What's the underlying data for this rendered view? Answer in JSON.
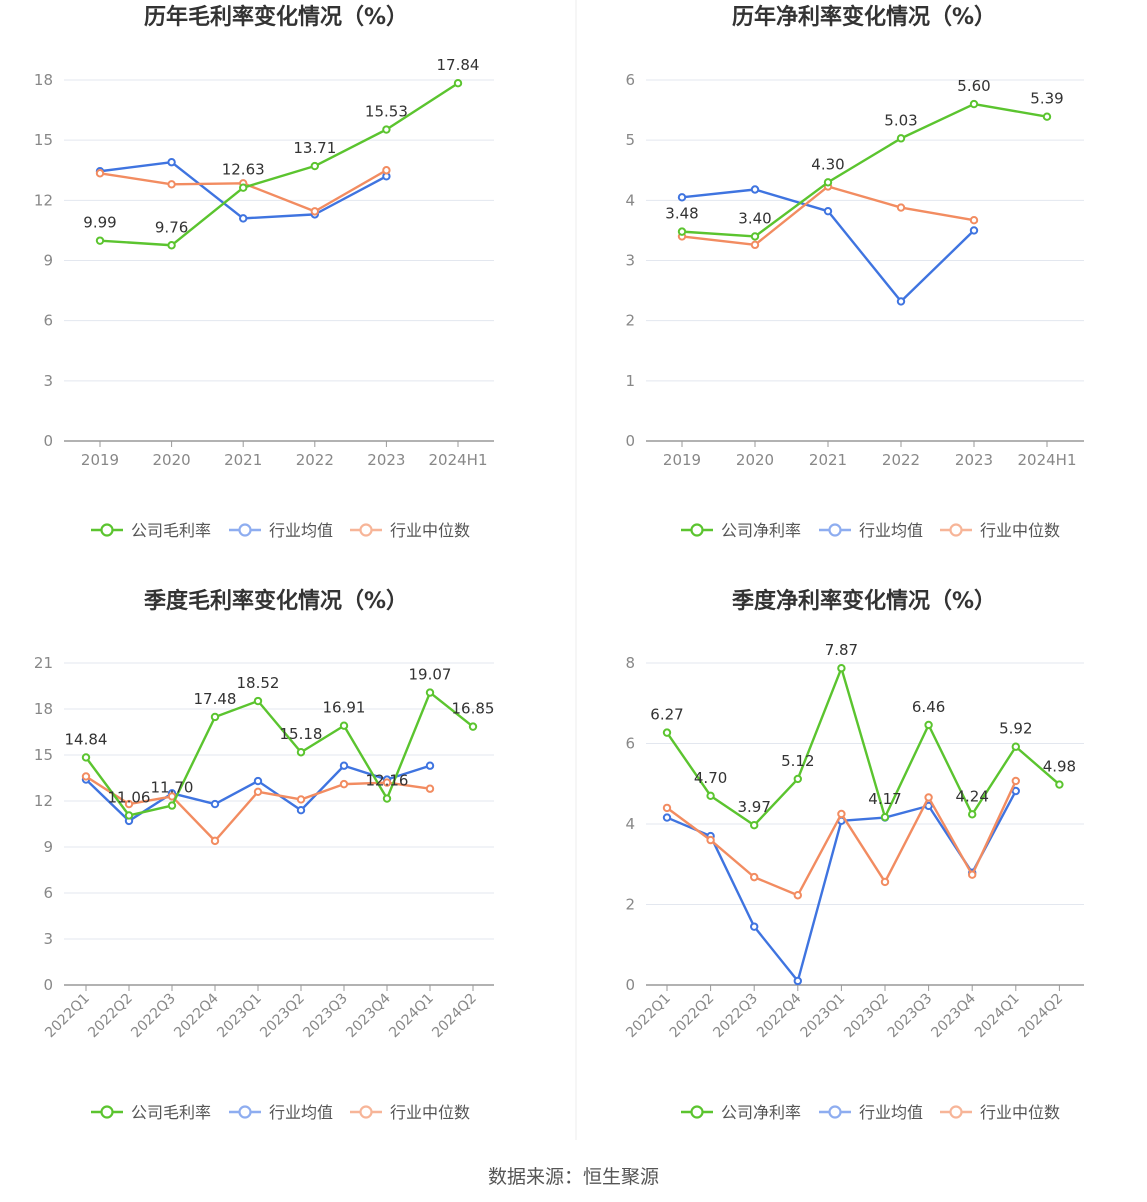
{
  "source_text": "数据来源：恒生聚源",
  "colors": {
    "company": "#5bc42f",
    "average": "#3f74e0",
    "median": "#f28c61",
    "grid": "#e3e7ef",
    "axis": "#999999",
    "tick": "#888888",
    "title": "#333333",
    "label": "#333333"
  },
  "chart_data": [
    {
      "type": "line",
      "title": "历年毛利率变化情况（%）",
      "categories": [
        "2019",
        "2020",
        "2021",
        "2022",
        "2023",
        "2024H1"
      ],
      "ylim": [
        0,
        18
      ],
      "yticks": [
        0,
        3,
        6,
        9,
        12,
        15,
        18
      ],
      "rotate_x": false,
      "grid": true,
      "legend_position": "bottom",
      "series": [
        {
          "name": "公司毛利率",
          "role": "company",
          "labeled": true,
          "values": [
            9.99,
            9.76,
            12.63,
            13.71,
            15.53,
            17.84
          ]
        },
        {
          "name": "行业均值",
          "role": "average",
          "labeled": false,
          "values": [
            13.45,
            13.9,
            11.1,
            11.3,
            13.2,
            null
          ]
        },
        {
          "name": "行业中位数",
          "role": "median",
          "labeled": false,
          "values": [
            13.35,
            12.8,
            12.85,
            11.45,
            13.5,
            null
          ]
        }
      ]
    },
    {
      "type": "line",
      "title": "历年净利率变化情况（%）",
      "categories": [
        "2019",
        "2020",
        "2021",
        "2022",
        "2023",
        "2024H1"
      ],
      "ylim": [
        0,
        6
      ],
      "yticks": [
        0,
        1,
        2,
        3,
        4,
        5,
        6
      ],
      "rotate_x": false,
      "grid": true,
      "legend_position": "bottom",
      "series": [
        {
          "name": "公司净利率",
          "role": "company",
          "labeled": true,
          "values": [
            3.48,
            3.4,
            4.3,
            5.03,
            5.6,
            5.39
          ]
        },
        {
          "name": "行业均值",
          "role": "average",
          "labeled": false,
          "values": [
            4.05,
            4.18,
            3.82,
            2.32,
            3.5,
            null
          ]
        },
        {
          "name": "行业中位数",
          "role": "median",
          "labeled": false,
          "values": [
            3.4,
            3.26,
            4.23,
            3.88,
            3.67,
            null
          ]
        }
      ]
    },
    {
      "type": "line",
      "title": "季度毛利率变化情况（%）",
      "categories": [
        "2022Q1",
        "2022Q2",
        "2022Q3",
        "2022Q4",
        "2023Q1",
        "2023Q2",
        "2023Q3",
        "2023Q4",
        "2024Q1",
        "2024Q2"
      ],
      "ylim": [
        0,
        21
      ],
      "yticks": [
        0,
        3,
        6,
        9,
        12,
        15,
        18,
        21
      ],
      "rotate_x": true,
      "grid": true,
      "legend_position": "bottom",
      "series": [
        {
          "name": "公司毛利率",
          "role": "company",
          "labeled": true,
          "values": [
            14.84,
            11.06,
            11.7,
            17.48,
            18.52,
            15.18,
            16.91,
            12.16,
            19.07,
            16.85
          ]
        },
        {
          "name": "行业均值",
          "role": "average",
          "labeled": false,
          "values": [
            13.4,
            10.7,
            12.5,
            11.8,
            13.3,
            11.4,
            14.3,
            13.4,
            14.3,
            null
          ]
        },
        {
          "name": "行业中位数",
          "role": "median",
          "labeled": false,
          "values": [
            13.6,
            11.8,
            12.3,
            9.4,
            12.6,
            12.1,
            13.1,
            13.2,
            12.8,
            null
          ]
        }
      ]
    },
    {
      "type": "line",
      "title": "季度净利率变化情况（%）",
      "categories": [
        "2022Q1",
        "2022Q2",
        "2022Q3",
        "2022Q4",
        "2023Q1",
        "2023Q2",
        "2023Q3",
        "2023Q4",
        "2024Q1",
        "2024Q2"
      ],
      "ylim": [
        0,
        8
      ],
      "yticks": [
        0,
        2,
        4,
        6,
        8
      ],
      "rotate_x": true,
      "grid": true,
      "legend_position": "bottom",
      "series": [
        {
          "name": "公司净利率",
          "role": "company",
          "labeled": true,
          "values": [
            6.27,
            4.7,
            3.97,
            5.12,
            7.87,
            4.17,
            6.46,
            4.24,
            5.92,
            4.98
          ]
        },
        {
          "name": "行业均值",
          "role": "average",
          "labeled": false,
          "values": [
            4.16,
            3.7,
            1.45,
            0.1,
            4.08,
            4.16,
            4.45,
            2.79,
            4.82,
            null
          ]
        },
        {
          "name": "行业中位数",
          "role": "median",
          "labeled": false,
          "values": [
            4.4,
            3.6,
            2.68,
            2.23,
            4.25,
            2.56,
            4.66,
            2.74,
            5.07,
            null
          ]
        }
      ]
    }
  ]
}
